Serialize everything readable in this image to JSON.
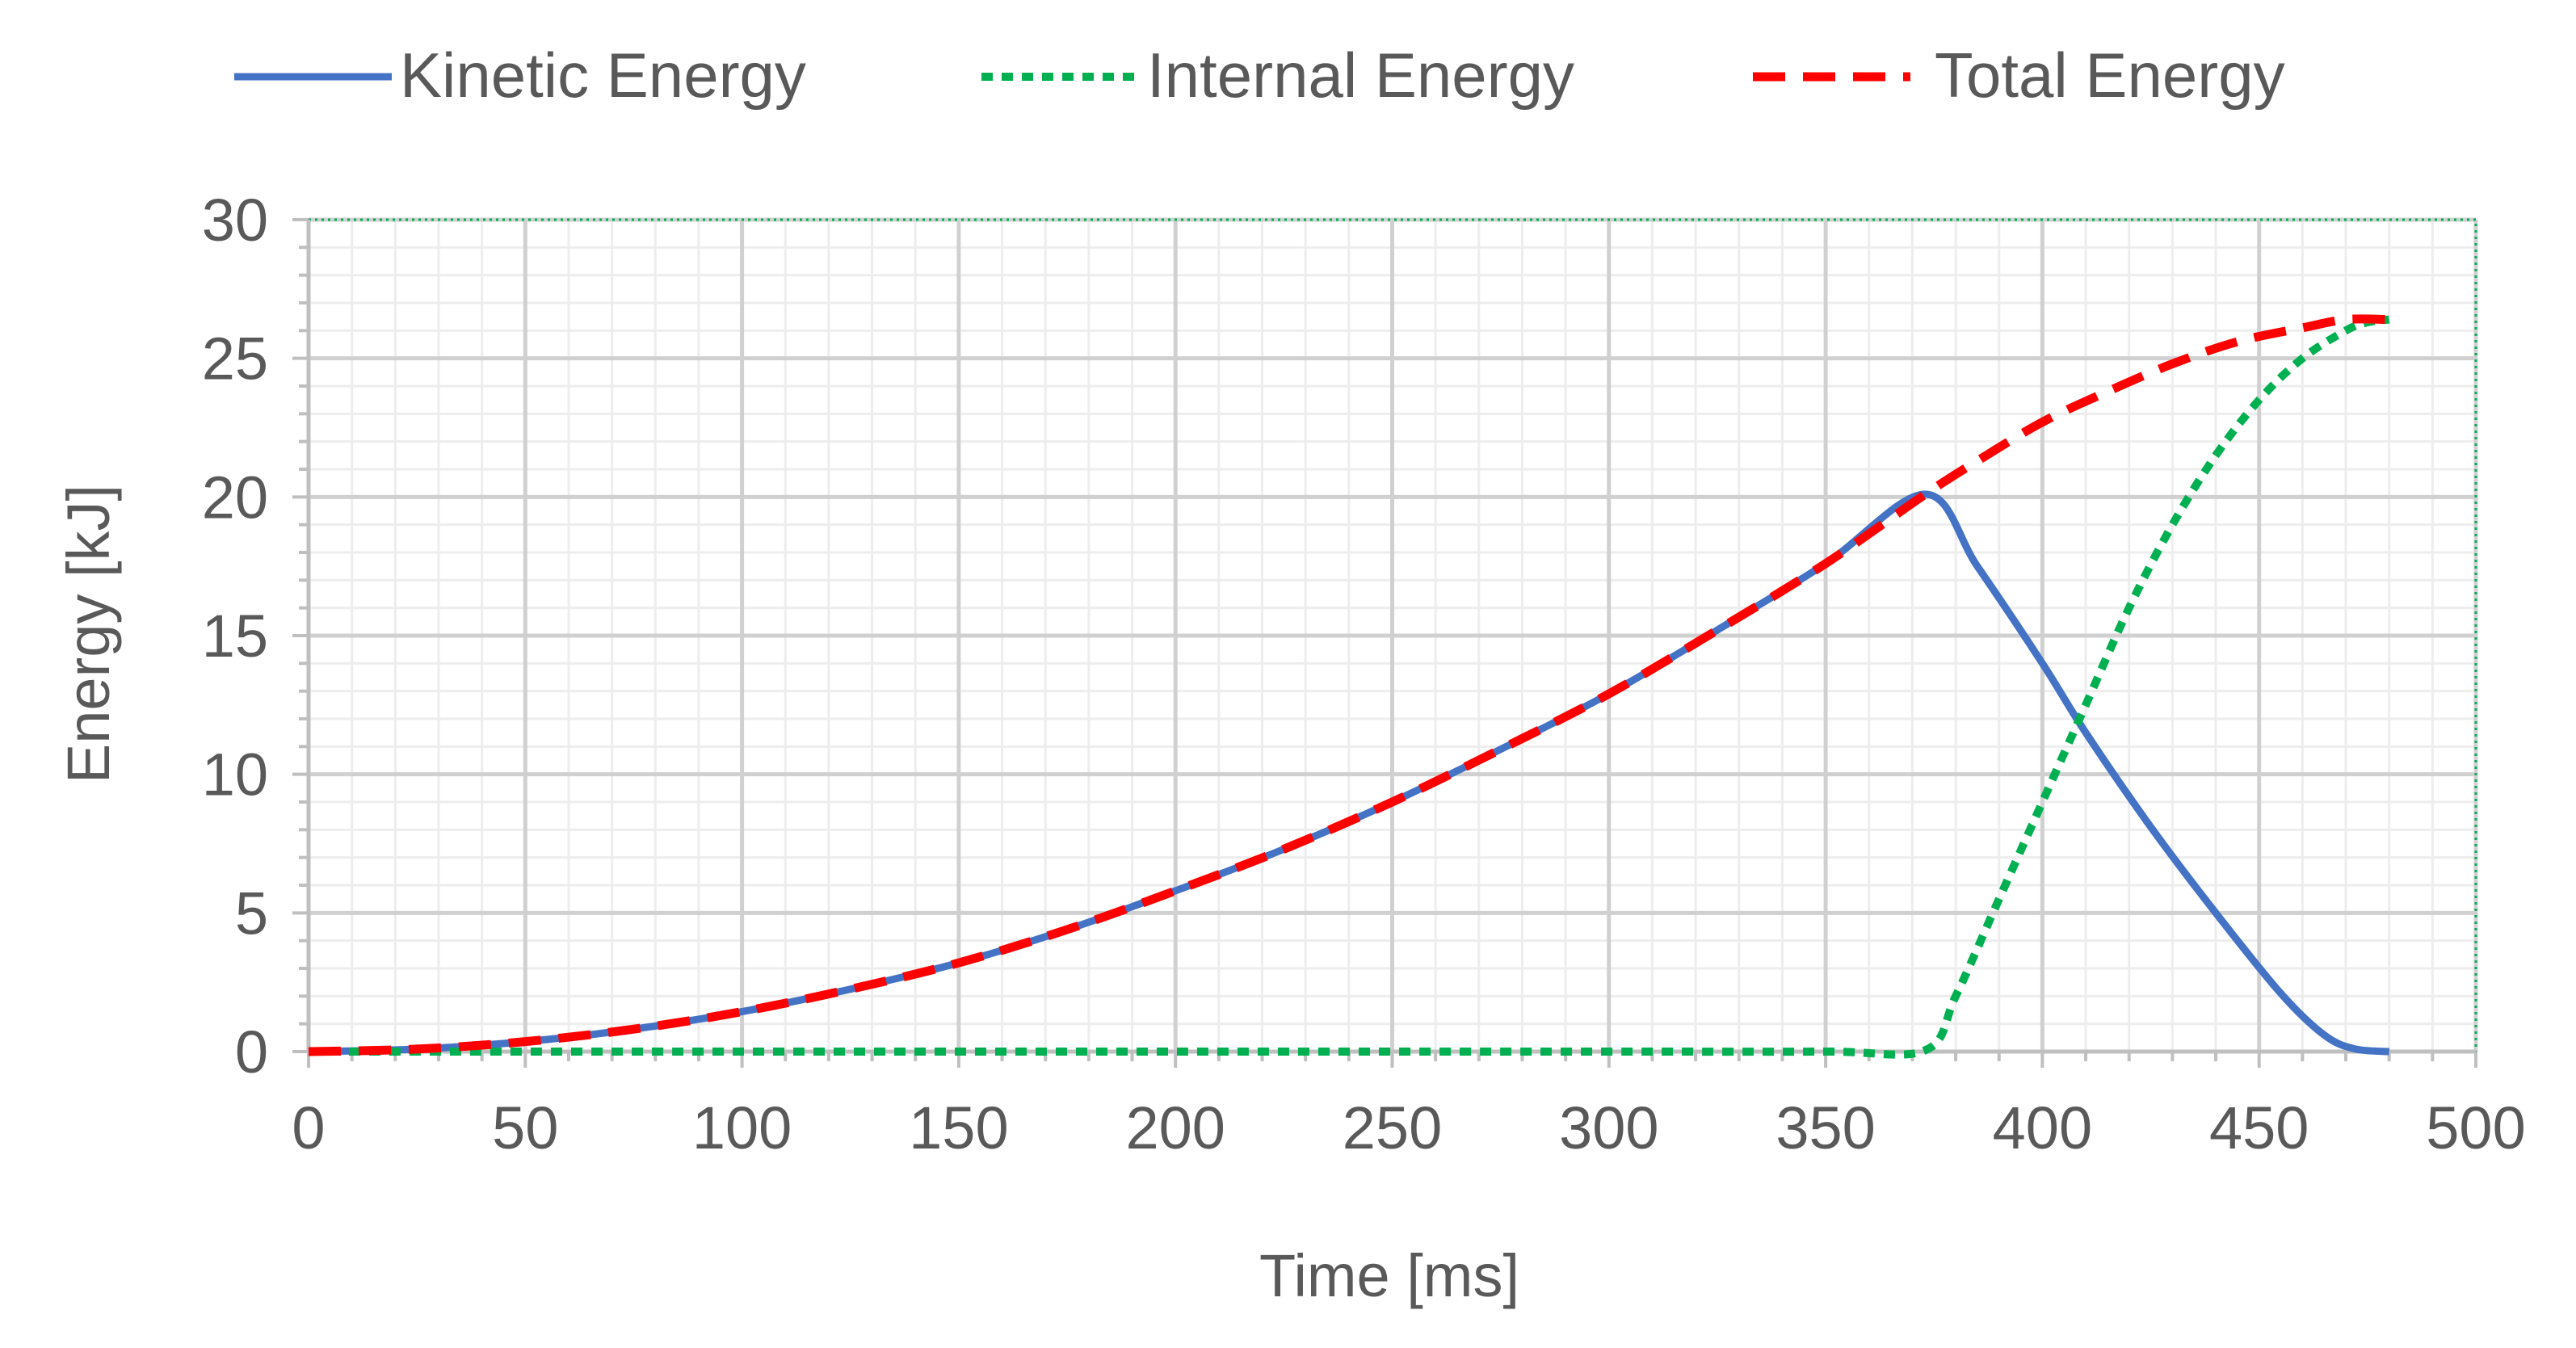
{
  "chart_data": {
    "type": "line",
    "title": "",
    "xlabel": "Time [ms]",
    "ylabel": "Energy [kJ]",
    "xlim": [
      0,
      500
    ],
    "ylim": [
      0,
      30
    ],
    "x_major_step": 50,
    "x_minor_step": 10,
    "y_major_step": 5,
    "y_minor_step": 1,
    "grid": true,
    "legend_position": "top",
    "x_ticks": [
      "0",
      "50",
      "100",
      "150",
      "200",
      "250",
      "300",
      "350",
      "400",
      "450",
      "500"
    ],
    "y_ticks": [
      "0",
      "5",
      "10",
      "15",
      "20",
      "25",
      "30"
    ],
    "series": [
      {
        "name": "Kinetic Energy",
        "color": "#4472C4",
        "style": "solid",
        "x": [
          0,
          25,
          50,
          75,
          100,
          125,
          150,
          175,
          200,
          225,
          250,
          275,
          300,
          325,
          350,
          373,
          385,
          400,
          410,
          425,
          440,
          455,
          465,
          472,
          480
        ],
        "y": [
          0,
          0.09,
          0.36,
          0.81,
          1.44,
          2.25,
          3.2,
          4.4,
          5.8,
          7.3,
          9.0,
          10.9,
          12.9,
          15.2,
          17.6,
          20.1,
          17.5,
          14.0,
          11.5,
          8.1,
          5.0,
          2.1,
          0.6,
          0.1,
          0
        ]
      },
      {
        "name": "Internal Energy",
        "color": "#00B050",
        "style": "dotted",
        "x": [
          0,
          100,
          200,
          300,
          350,
          373,
          380,
          390,
          400,
          410,
          420,
          430,
          440,
          450,
          460,
          470,
          475,
          480
        ],
        "y": [
          0,
          0,
          0,
          0,
          0,
          0.05,
          2.0,
          5.5,
          9.0,
          12.5,
          16.0,
          19.0,
          21.5,
          23.5,
          25.0,
          26.0,
          26.3,
          26.4
        ]
      },
      {
        "name": "Total Energy",
        "color": "#FF0000",
        "style": "dashed",
        "x": [
          0,
          25,
          50,
          75,
          100,
          125,
          150,
          175,
          200,
          225,
          250,
          275,
          300,
          325,
          350,
          373,
          385,
          400,
          415,
          430,
          445,
          460,
          470,
          480
        ],
        "y": [
          0,
          0.09,
          0.36,
          0.81,
          1.44,
          2.25,
          3.2,
          4.4,
          5.8,
          7.3,
          9.0,
          10.9,
          12.9,
          15.2,
          17.6,
          20.1,
          21.3,
          22.7,
          23.8,
          24.8,
          25.6,
          26.1,
          26.4,
          26.4
        ]
      }
    ]
  }
}
